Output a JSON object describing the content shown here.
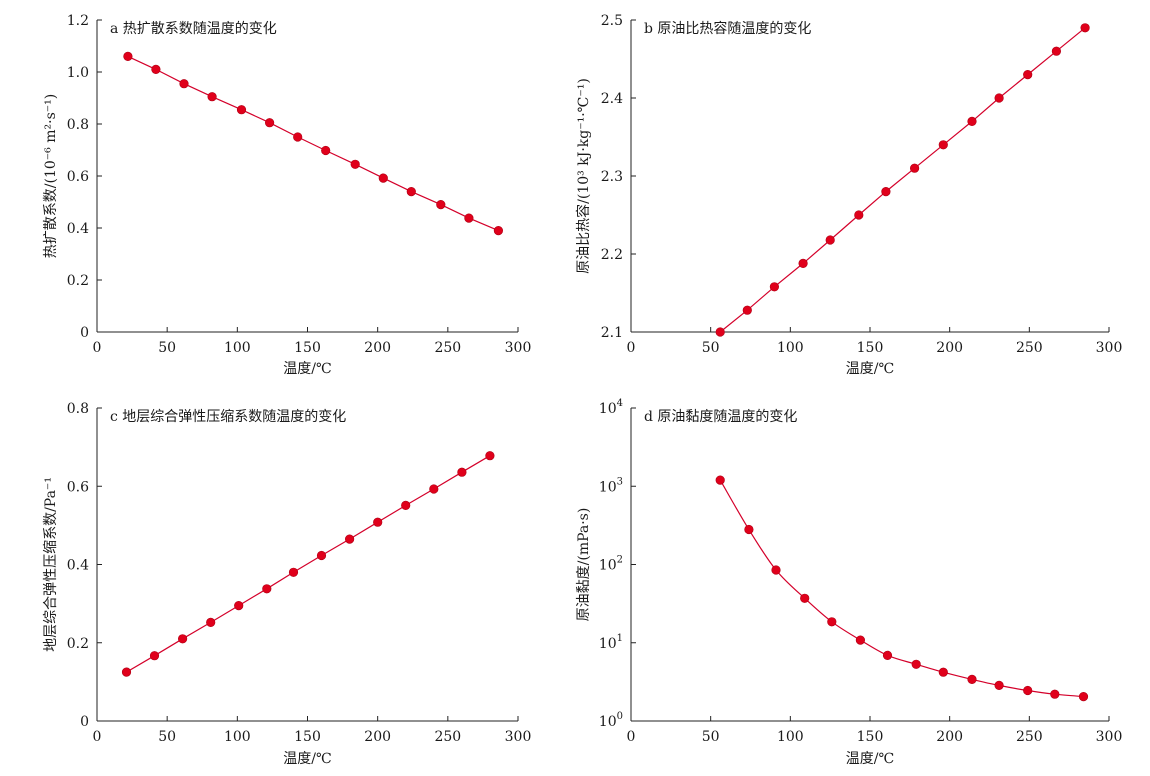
{
  "chart_data": [
    {
      "id": "a",
      "type": "scatter",
      "title": "a 热扩散系数随温度的变化",
      "xlabel": "温度/℃",
      "ylabel": "热扩散系数/(10⁻⁶ m²·s⁻¹)",
      "xlim": [
        0,
        300
      ],
      "ylim": [
        0,
        1.2
      ],
      "yscale": "linear",
      "xticks": [
        0,
        50,
        100,
        150,
        200,
        250,
        300
      ],
      "yticks": [
        0,
        0.2,
        0.4,
        0.6,
        0.8,
        1.0,
        1.2
      ],
      "ytick_labels": [
        "0",
        "0.2",
        "0.4",
        "0.6",
        "0.8",
        "1.0",
        "1.2"
      ],
      "series": [
        {
          "color": "#e0001b",
          "x": [
            22,
            42,
            62,
            82,
            103,
            123,
            143,
            163,
            184,
            204,
            224,
            245,
            265,
            286
          ],
          "y": [
            1.06,
            1.01,
            0.955,
            0.905,
            0.855,
            0.805,
            0.75,
            0.698,
            0.645,
            0.592,
            0.54,
            0.49,
            0.438,
            0.39
          ]
        }
      ]
    },
    {
      "id": "b",
      "type": "scatter",
      "title": "b 原油比热容随温度的变化",
      "xlabel": "温度/℃",
      "ylabel": "原油比热容/(10³ kJ·kg⁻¹·℃⁻¹)",
      "xlim": [
        0,
        300
      ],
      "ylim": [
        2.1,
        2.5
      ],
      "yscale": "linear",
      "xticks": [
        0,
        50,
        100,
        150,
        200,
        250,
        300
      ],
      "yticks": [
        2.1,
        2.2,
        2.3,
        2.4,
        2.5
      ],
      "ytick_labels": [
        "2.1",
        "2.2",
        "2.3",
        "2.4",
        "2.5"
      ],
      "series": [
        {
          "color": "#e0001b",
          "x": [
            56,
            73,
            90,
            108,
            125,
            143,
            160,
            178,
            196,
            214,
            231,
            249,
            267,
            285
          ],
          "y": [
            2.1,
            2.128,
            2.158,
            2.188,
            2.218,
            2.25,
            2.28,
            2.31,
            2.34,
            2.37,
            2.4,
            2.43,
            2.46,
            2.49
          ]
        }
      ]
    },
    {
      "id": "c",
      "type": "scatter",
      "title": "c 地层综合弹性压缩系数随温度的变化",
      "xlabel": "温度/℃",
      "ylabel": "地层综合弹性压缩系数/Pa⁻¹",
      "xlim": [
        0,
        300
      ],
      "ylim": [
        0,
        0.8
      ],
      "yscale": "linear",
      "xticks": [
        0,
        50,
        100,
        150,
        200,
        250,
        300
      ],
      "yticks": [
        0,
        0.2,
        0.4,
        0.6,
        0.8
      ],
      "ytick_labels": [
        "0",
        "0.2",
        "0.4",
        "0.6",
        "0.8"
      ],
      "series": [
        {
          "color": "#e0001b",
          "x": [
            21,
            41,
            61,
            81,
            101,
            121,
            140,
            160,
            180,
            200,
            220,
            240,
            260,
            280
          ],
          "y": [
            0.125,
            0.167,
            0.21,
            0.252,
            0.295,
            0.338,
            0.38,
            0.423,
            0.465,
            0.508,
            0.551,
            0.593,
            0.636,
            0.678
          ]
        }
      ]
    },
    {
      "id": "d",
      "type": "scatter",
      "title": "d 原油黏度随温度的变化",
      "xlabel": "温度/℃",
      "ylabel": "原油黏度/(mPa·s)",
      "xlim": [
        0,
        300
      ],
      "ylim": [
        1,
        10000
      ],
      "yscale": "log",
      "xticks": [
        0,
        50,
        100,
        150,
        200,
        250,
        300
      ],
      "yticks": [
        1,
        10,
        100,
        1000,
        10000
      ],
      "ytick_labels": [
        {
          "base": "10",
          "exp": "0"
        },
        {
          "base": "10",
          "exp": "1"
        },
        {
          "base": "10",
          "exp": "2"
        },
        {
          "base": "10",
          "exp": "3"
        },
        {
          "base": "10",
          "exp": "4"
        }
      ],
      "series": [
        {
          "color": "#e0001b",
          "x": [
            56,
            74,
            91,
            109,
            126,
            144,
            161,
            179,
            196,
            214,
            231,
            249,
            266,
            284
          ],
          "y": [
            1200,
            280,
            85,
            37,
            18.5,
            10.8,
            6.9,
            5.3,
            4.2,
            3.4,
            2.85,
            2.45,
            2.2,
            2.05
          ]
        }
      ]
    }
  ]
}
